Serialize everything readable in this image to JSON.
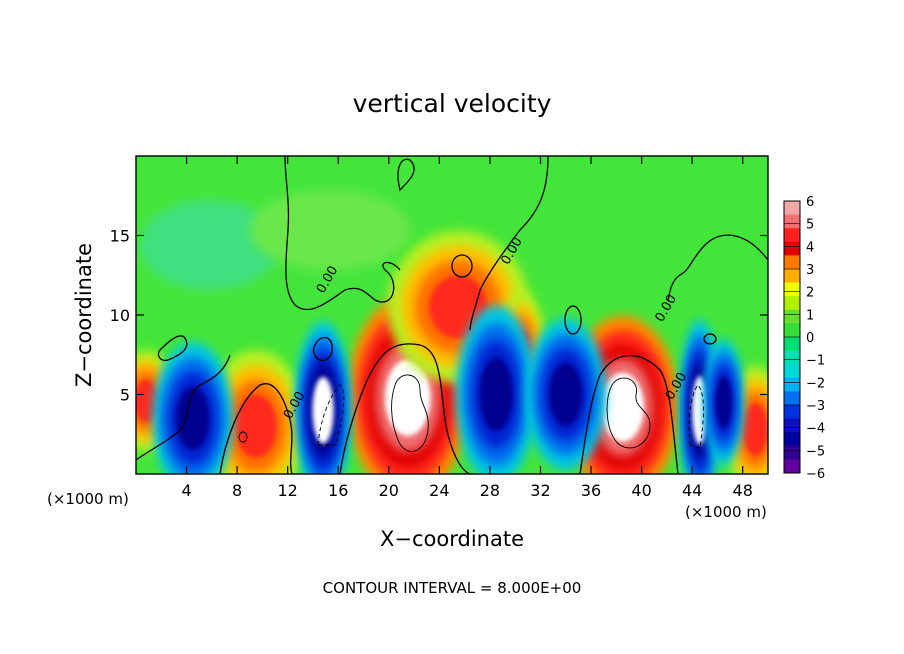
{
  "chart_data": {
    "type": "heatmap",
    "title": "vertical velocity",
    "xlabel": "X−coordinate",
    "ylabel": "Z−coordinate",
    "x_unit_left": "(×1000 m)",
    "x_unit_right": "(×1000 m)",
    "footer": "CONTOUR INTERVAL = 8.000E+00",
    "xlim": [
      0,
      50
    ],
    "ylim": [
      0,
      20
    ],
    "x_ticks": [
      4,
      8,
      12,
      16,
      20,
      24,
      28,
      32,
      36,
      40,
      44,
      48
    ],
    "x_tick_labels": [
      "4",
      "8",
      "12",
      "16",
      "20",
      "24",
      "28",
      "32",
      "36",
      "40",
      "44",
      "48"
    ],
    "y_ticks": [
      5,
      10,
      15
    ],
    "y_tick_labels": [
      "5",
      "10",
      "15"
    ],
    "contour_labels": [
      {
        "text": "0.00",
        "x": 15.4,
        "z": 12.1
      },
      {
        "text": "0.00",
        "x": 30.0,
        "z": 13.9
      },
      {
        "text": "0.00",
        "x": 42.2,
        "z": 10.3
      },
      {
        "text": "0.00",
        "x": 12.8,
        "z": 4.2
      },
      {
        "text": "0.00",
        "x": 43.0,
        "z": 5.4
      }
    ],
    "colorbar": {
      "min": -6,
      "max": 6,
      "tick_labels": [
        "6",
        "5",
        "4",
        "3",
        "2",
        "1",
        "0",
        "−1",
        "−2",
        "−3",
        "−4",
        "−5",
        "−6"
      ],
      "colors": [
        "#f2a6a6",
        "#f06e6e",
        "#ff2020",
        "#e00000",
        "#ff7a00",
        "#ffb000",
        "#f0ff00",
        "#b0f000",
        "#66e030",
        "#33dd33",
        "#00e070",
        "#00e0b0",
        "#00d8d8",
        "#00b0f0",
        "#0070f0",
        "#0030e0",
        "#1010c0",
        "#0000a0",
        "#300090",
        "#6000a0"
      ]
    },
    "features": [
      {
        "kind": "updraft_core",
        "x": 21.5,
        "z": 4.8,
        "rx": 3.0,
        "rz": 4.0
      },
      {
        "kind": "updraft_core",
        "x": 38.5,
        "z": 4.2,
        "rx": 2.8,
        "rz": 3.6
      },
      {
        "kind": "updraft",
        "x": 25.5,
        "z": 10.5,
        "rx": 3.5,
        "rz": 3.0
      },
      {
        "kind": "updraft",
        "x": 9.5,
        "z": 3.0,
        "rx": 2.5,
        "rz": 3.0
      },
      {
        "kind": "updraft",
        "x": 30.5,
        "z": 7.5,
        "rx": 1.2,
        "rz": 2.5
      },
      {
        "kind": "updraft",
        "x": 49.0,
        "z": 2.8,
        "rx": 1.5,
        "rz": 2.5
      },
      {
        "kind": "updraft",
        "x": 0.8,
        "z": 4.6,
        "rx": 1.5,
        "rz": 2.0
      },
      {
        "kind": "downdraft_core",
        "x": 14.8,
        "z": 4.0,
        "rx": 1.4,
        "rz": 3.5
      },
      {
        "kind": "downdraft_core",
        "x": 44.6,
        "z": 4.0,
        "rx": 1.0,
        "rz": 3.6
      },
      {
        "kind": "downdraft",
        "x": 4.5,
        "z": 3.5,
        "rx": 2.0,
        "rz": 3.0
      },
      {
        "kind": "downdraft",
        "x": 28.5,
        "z": 5.0,
        "rx": 2.0,
        "rz": 3.5
      },
      {
        "kind": "downdraft",
        "x": 34.0,
        "z": 5.0,
        "rx": 2.0,
        "rz": 3.0
      },
      {
        "kind": "downdraft",
        "x": 46.5,
        "z": 4.5,
        "rx": 1.0,
        "rz": 2.5
      }
    ]
  }
}
